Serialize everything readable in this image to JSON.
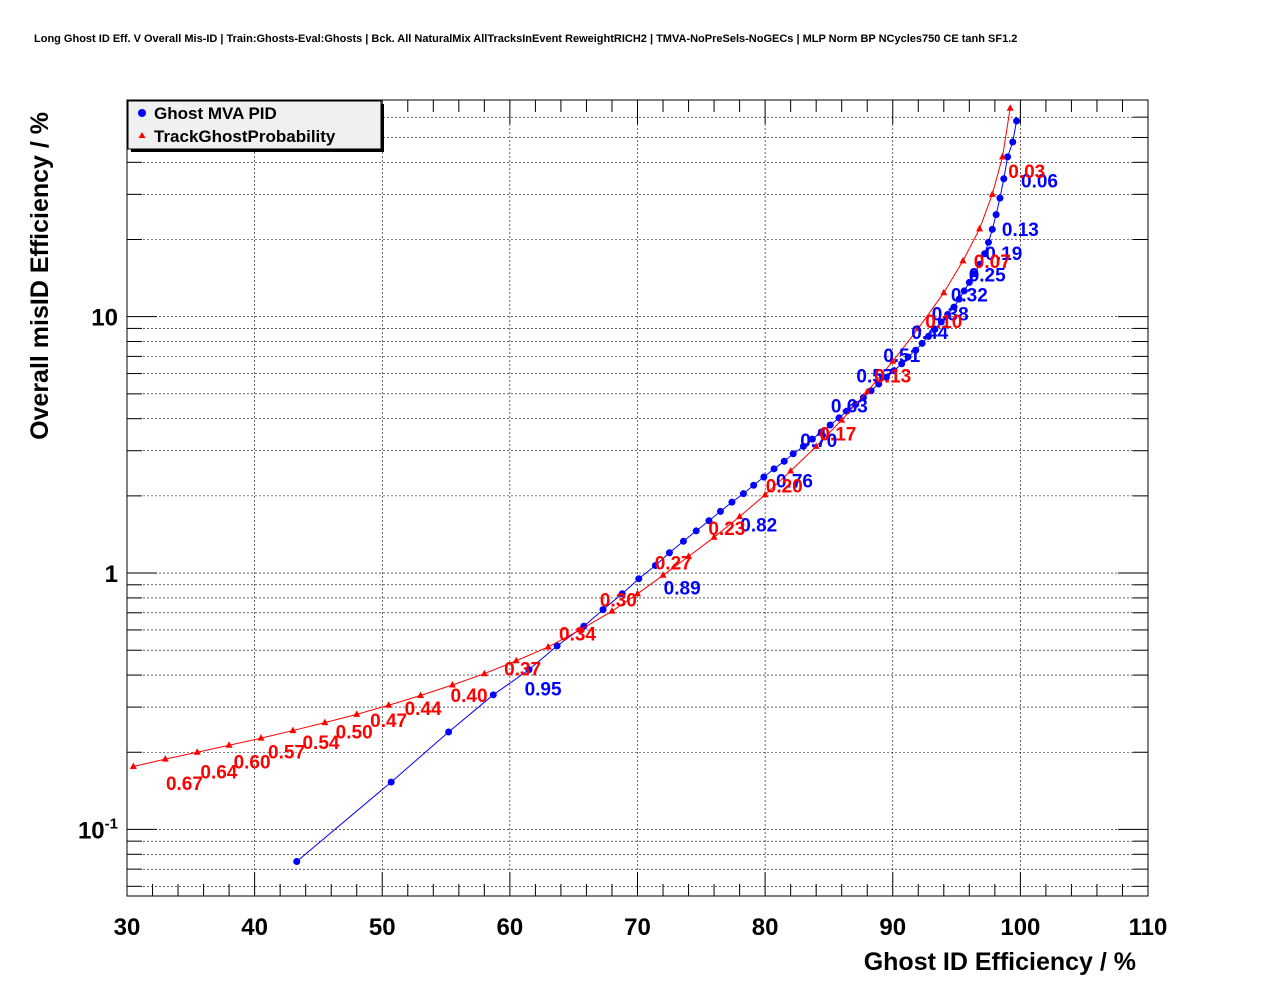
{
  "title": "Long Ghost ID Eff. V Overall Mis-ID | Train:Ghosts-Eval:Ghosts | Bck. All NaturalMix AllTracksInEvent ReweightRICH2 | TMVA-NoPreSels-NoGECs | MLP Norm BP NCycles750 CE tanh SF1.2",
  "chart_data": {
    "type": "scatter",
    "xlabel": "Ghost ID Efficiency / %",
    "ylabel": "Overall misID Efficiency / %",
    "xlim": [
      30,
      110
    ],
    "ylim": [
      0.055,
      70
    ],
    "y_scale": "log",
    "grid": true,
    "legend_position": "top-left",
    "x_tick_labels": [
      "30",
      "40",
      "50",
      "60",
      "70",
      "80",
      "90",
      "100",
      "110"
    ],
    "y_tick_labels": [
      {
        "value": 0.1,
        "base": "10",
        "exp": "-1"
      },
      {
        "value": 1,
        "base": "1",
        "exp": ""
      },
      {
        "value": 10,
        "base": "10",
        "exp": ""
      }
    ],
    "series": [
      {
        "name": "Ghost MVA PID",
        "color": "#0000ff",
        "marker": "circle",
        "points": [
          [
            43.3,
            0.075
          ],
          [
            50.7,
            0.153
          ],
          [
            55.2,
            0.24
          ],
          [
            58.7,
            0.335
          ],
          [
            61.5,
            0.42
          ],
          [
            63.7,
            0.52
          ],
          [
            65.8,
            0.62
          ],
          [
            67.3,
            0.72
          ],
          [
            68.8,
            0.83
          ],
          [
            70.1,
            0.95
          ],
          [
            71.4,
            1.07
          ],
          [
            72.5,
            1.2
          ],
          [
            73.6,
            1.33
          ],
          [
            74.6,
            1.46
          ],
          [
            75.6,
            1.6
          ],
          [
            76.5,
            1.74
          ],
          [
            77.4,
            1.89
          ],
          [
            78.3,
            2.04
          ],
          [
            79.1,
            2.2
          ],
          [
            79.9,
            2.37
          ],
          [
            80.7,
            2.55
          ],
          [
            81.5,
            2.73
          ],
          [
            82.2,
            2.92
          ],
          [
            83.0,
            3.12
          ],
          [
            83.7,
            3.33
          ],
          [
            84.4,
            3.55
          ],
          [
            85.1,
            3.78
          ],
          [
            85.8,
            4.03
          ],
          [
            86.4,
            4.28
          ],
          [
            87.1,
            4.55
          ],
          [
            87.7,
            4.84
          ],
          [
            88.3,
            5.14
          ],
          [
            88.9,
            5.46
          ],
          [
            89.5,
            5.8
          ],
          [
            90.1,
            6.16
          ],
          [
            90.7,
            6.55
          ],
          [
            91.2,
            6.96
          ],
          [
            91.8,
            7.4
          ],
          [
            92.3,
            7.87
          ],
          [
            92.8,
            8.38
          ],
          [
            93.3,
            8.93
          ],
          [
            93.8,
            9.53
          ],
          [
            94.3,
            10.2
          ],
          [
            94.8,
            10.9
          ],
          [
            95.2,
            11.7
          ],
          [
            95.6,
            12.6
          ],
          [
            96.0,
            13.6
          ],
          [
            96.4,
            14.7
          ],
          [
            96.8,
            16.0
          ],
          [
            97.2,
            17.6
          ],
          [
            97.5,
            19.5
          ],
          [
            97.8,
            21.9
          ],
          [
            98.1,
            25.0
          ],
          [
            98.4,
            29.0
          ],
          [
            98.7,
            34.5
          ],
          [
            99.0,
            42.0
          ],
          [
            99.4,
            48.0
          ],
          [
            99.7,
            58.0
          ]
        ],
        "cut_labels": [
          {
            "text": "0.95",
            "x": 62.6,
            "y": 0.355
          },
          {
            "text": "0.89",
            "x": 73.5,
            "y": 0.88
          },
          {
            "text": "0.82",
            "x": 79.5,
            "y": 1.55
          },
          {
            "text": "0.76",
            "x": 82.3,
            "y": 2.3
          },
          {
            "text": "0.70",
            "x": 84.2,
            "y": 3.3
          },
          {
            "text": "0.63",
            "x": 86.6,
            "y": 4.5
          },
          {
            "text": "0.57",
            "x": 88.6,
            "y": 5.9
          },
          {
            "text": "0.51",
            "x": 90.7,
            "y": 7.1
          },
          {
            "text": "0.44",
            "x": 92.9,
            "y": 8.7
          },
          {
            "text": "0.38",
            "x": 94.5,
            "y": 10.3
          },
          {
            "text": "0.32",
            "x": 96.0,
            "y": 12.2
          },
          {
            "text": "0.25",
            "x": 97.4,
            "y": 14.6
          },
          {
            "text": "0.19",
            "x": 98.7,
            "y": 17.7
          },
          {
            "text": "0.13",
            "x": 100.0,
            "y": 22.0
          },
          {
            "text": "0.06",
            "x": 101.5,
            "y": 34.0
          }
        ]
      },
      {
        "name": "TrackGhostProbability",
        "color": "#ff0000",
        "marker": "triangle",
        "points": [
          [
            30.5,
            0.176
          ],
          [
            33.0,
            0.188
          ],
          [
            35.5,
            0.2
          ],
          [
            38.0,
            0.213
          ],
          [
            40.5,
            0.227
          ],
          [
            43.0,
            0.243
          ],
          [
            45.5,
            0.261
          ],
          [
            48.0,
            0.281
          ],
          [
            50.5,
            0.305
          ],
          [
            53.0,
            0.333
          ],
          [
            55.5,
            0.366
          ],
          [
            58.0,
            0.405
          ],
          [
            60.5,
            0.455
          ],
          [
            63.0,
            0.515
          ],
          [
            65.5,
            0.6
          ],
          [
            68.0,
            0.71
          ],
          [
            70.0,
            0.83
          ],
          [
            72.0,
            0.98
          ],
          [
            74.0,
            1.16
          ],
          [
            76.0,
            1.38
          ],
          [
            78.0,
            1.66
          ],
          [
            80.0,
            2.02
          ],
          [
            82.0,
            2.5
          ],
          [
            84.0,
            3.12
          ],
          [
            86.0,
            3.95
          ],
          [
            88.0,
            5.1
          ],
          [
            90.0,
            6.7
          ],
          [
            92.0,
            9.0
          ],
          [
            94.0,
            12.4
          ],
          [
            95.5,
            16.5
          ],
          [
            96.8,
            22.0
          ],
          [
            97.8,
            30.0
          ],
          [
            98.6,
            42.0
          ],
          [
            99.2,
            65.0
          ]
        ],
        "cut_labels": [
          {
            "text": "0.67",
            "x": 34.5,
            "y": 0.152
          },
          {
            "text": "0.64",
            "x": 37.2,
            "y": 0.168
          },
          {
            "text": "0.60",
            "x": 39.8,
            "y": 0.184
          },
          {
            "text": "0.57",
            "x": 42.5,
            "y": 0.201
          },
          {
            "text": "0.54",
            "x": 45.2,
            "y": 0.219
          },
          {
            "text": "0.50",
            "x": 47.8,
            "y": 0.241
          },
          {
            "text": "0.47",
            "x": 50.5,
            "y": 0.267
          },
          {
            "text": "0.44",
            "x": 53.2,
            "y": 0.297
          },
          {
            "text": "0.40",
            "x": 56.8,
            "y": 0.335
          },
          {
            "text": "0.37",
            "x": 61.0,
            "y": 0.425
          },
          {
            "text": "0.34",
            "x": 65.3,
            "y": 0.58
          },
          {
            "text": "0.30",
            "x": 68.5,
            "y": 0.79
          },
          {
            "text": "0.27",
            "x": 72.8,
            "y": 1.1
          },
          {
            "text": "0.23",
            "x": 77.0,
            "y": 1.5
          },
          {
            "text": "0.20",
            "x": 81.5,
            "y": 2.2
          },
          {
            "text": "0.17",
            "x": 85.7,
            "y": 3.5
          },
          {
            "text": "0.13",
            "x": 90.0,
            "y": 5.9
          },
          {
            "text": "0.10",
            "x": 94.0,
            "y": 9.6
          },
          {
            "text": "0.07",
            "x": 97.8,
            "y": 16.5
          },
          {
            "text": "0.03",
            "x": 100.5,
            "y": 37.0
          }
        ]
      }
    ]
  }
}
